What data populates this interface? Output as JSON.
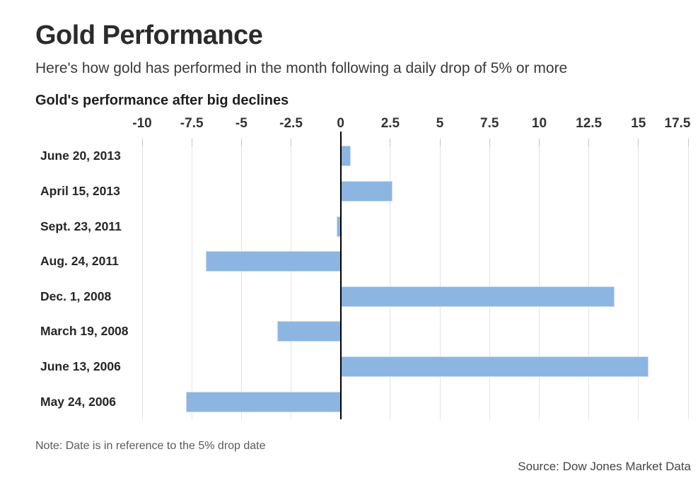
{
  "header": {
    "title": "Gold Performance",
    "subtitle": "Here's how gold has performed in the month following a daily drop of 5% or more"
  },
  "chart_data": {
    "type": "bar",
    "orientation": "horizontal",
    "title": "Gold's performance after big declines",
    "categories": [
      "June 20, 2013",
      "April 15, 2013",
      "Sept. 23, 2011",
      "Aug. 24, 2011",
      "Dec. 1, 2008",
      "March 19, 2008",
      "June 13, 2006",
      "May 24, 2006"
    ],
    "values": [
      0.5,
      2.6,
      -0.2,
      -6.8,
      13.8,
      -3.2,
      15.5,
      -7.8
    ],
    "xlabel": "",
    "ylabel": "",
    "xlim": [
      -10,
      17.5
    ],
    "xticks": [
      -10,
      -7.5,
      -5,
      -2.5,
      0,
      2.5,
      5,
      7.5,
      10,
      12.5,
      15,
      17.5
    ],
    "grid": "vertical",
    "legend": "none"
  },
  "footer": {
    "note": "Note: Date is in reference to the 5% drop date",
    "source": "Source: Dow Jones Market Data"
  },
  "colors": {
    "bar_fill": "#8cb5e2",
    "bar_border": "#c8dcf0",
    "gridline": "#e3e3e3",
    "tick_mark": "#c4c4c4",
    "zero_line": "#000000"
  }
}
